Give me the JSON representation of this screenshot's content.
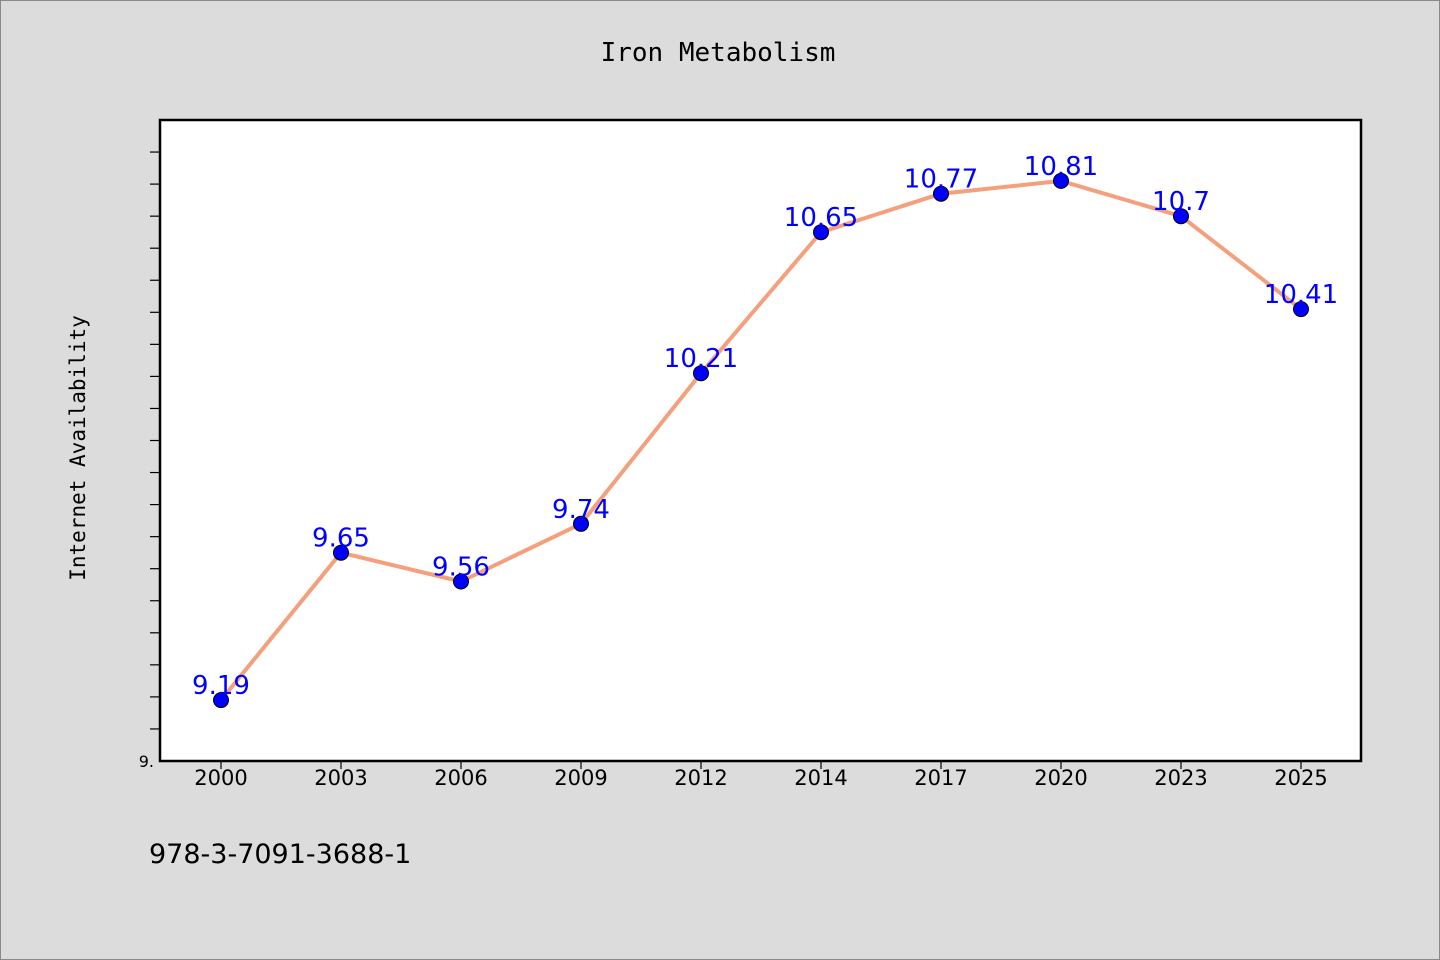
{
  "chart_data": {
    "type": "line",
    "title": "Iron Metabolism",
    "xlabel": "",
    "ylabel": "Internet Availability",
    "categories": [
      "2000",
      "2003",
      "2006",
      "2009",
      "2012",
      "2014",
      "2017",
      "2020",
      "2023",
      "2025"
    ],
    "values": [
      9.19,
      9.65,
      9.56,
      9.74,
      10.21,
      10.65,
      10.77,
      10.81,
      10.7,
      10.41
    ],
    "data_labels": [
      "9.19",
      "9.65",
      "9.56",
      "9.74",
      "10.21",
      "10.65",
      "10.77",
      "10.81",
      "10.7",
      "10.41"
    ],
    "ylim": [
      9.0,
      11.0
    ],
    "y_tick_label": "9.",
    "grid": false,
    "legend": "none",
    "line_color": "#f4a07c",
    "marker_color": "#0000ff",
    "label_color": "#0000ff"
  },
  "footer": {
    "isbn": "978-3-7091-3688-1"
  }
}
